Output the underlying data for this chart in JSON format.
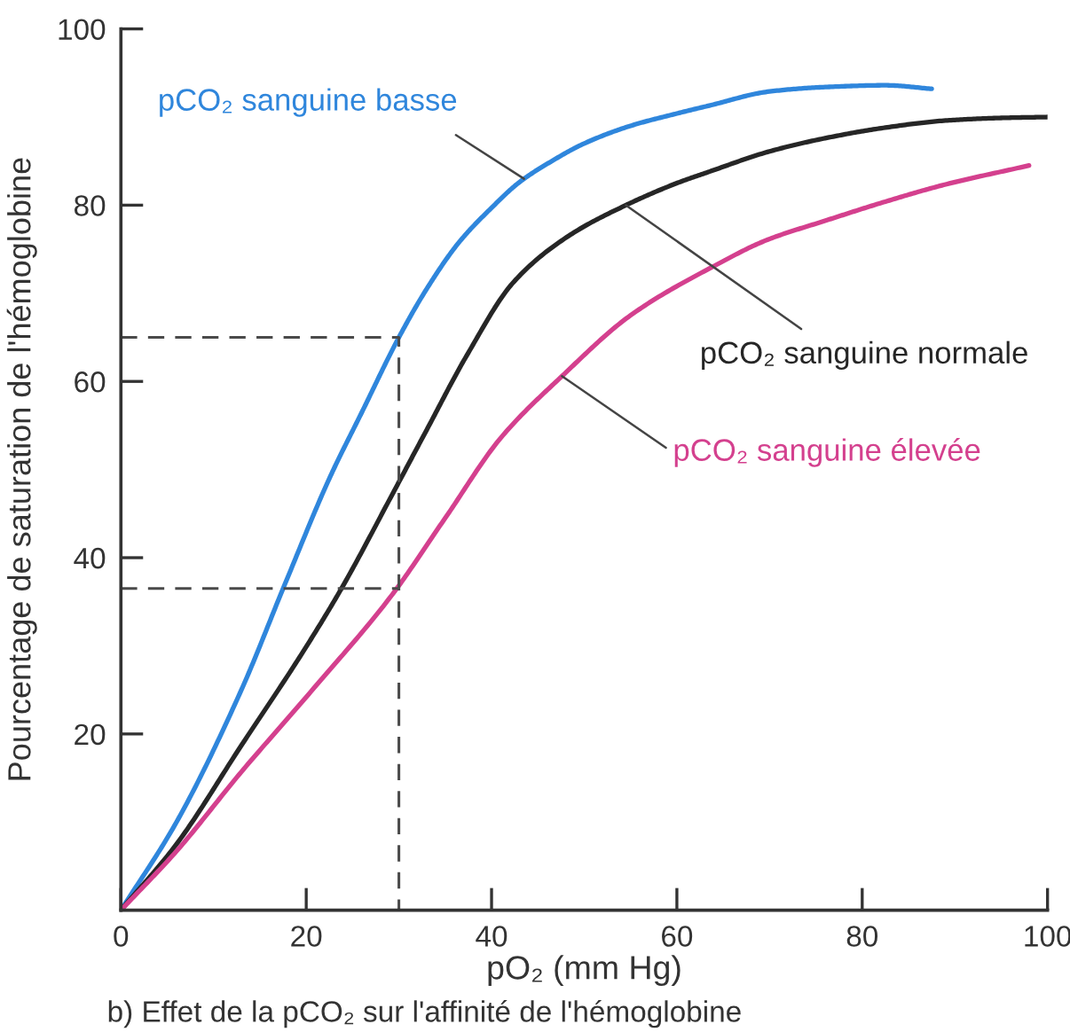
{
  "chart_data": {
    "type": "line",
    "xlabel": "pO₂ (mm Hg)",
    "ylabel": "Pourcentage de saturation de l'hémoglobine",
    "xlim": [
      0,
      100
    ],
    "ylim": [
      0,
      100
    ],
    "xticks": [
      0,
      20,
      40,
      60,
      80,
      100
    ],
    "yticks": [
      20,
      40,
      60,
      80,
      100
    ],
    "grid": false,
    "legend": false,
    "marker": "none",
    "line_style": "solid",
    "annotations": [
      "b) Effet de la pCO₂ sur l'affinité de l'hémoglobine"
    ],
    "series": [
      {
        "name": "pCO₂ sanguine basse",
        "color": "#2f86dc",
        "x": [
          0,
          6,
          13,
          17.7,
          22.5,
          26,
          30,
          33,
          36.5,
          40,
          43,
          46.5,
          50,
          55,
          60,
          63.5,
          70,
          76,
          82.5,
          87.5
        ],
        "values": [
          0,
          10,
          25,
          37,
          49,
          56.5,
          65,
          70.5,
          75.8,
          79.7,
          82.6,
          85,
          87,
          89,
          90.4,
          91.3,
          92.9,
          93.4,
          93.6,
          93.2
        ]
      },
      {
        "name": "pCO₂ sanguine normale",
        "color": "#262626",
        "x": [
          0,
          6,
          13,
          19.7,
          23.8,
          29.5,
          33,
          37.3,
          42.4,
          48.3,
          54.5,
          60,
          63.5,
          70,
          76,
          82.5,
          89,
          95,
          100
        ],
        "values": [
          0,
          7.5,
          18.7,
          29.4,
          36.5,
          47.6,
          54.5,
          62.9,
          71.3,
          76.5,
          80,
          82.5,
          83.8,
          86.1,
          87.6,
          88.8,
          89.6,
          89.9,
          90
        ]
      },
      {
        "name": "pCO₂ sanguine élevée",
        "color": "#d4408e",
        "x": [
          0,
          6,
          13,
          20.5,
          29.2,
          35,
          41,
          47.6,
          55,
          64.2,
          69.6,
          76.2,
          82.5,
          88.8,
          98
        ],
        "values": [
          0,
          6.7,
          15.7,
          24.8,
          35.7,
          44.5,
          53.6,
          60.6,
          67.5,
          73.2,
          76,
          78.3,
          80.4,
          82.3,
          84.5
        ]
      },
      {
        "color": "#4a4a4a",
        "line_style": "dashed",
        "x": [
          0,
          30,
          30
        ],
        "values": [
          65,
          65,
          0
        ]
      },
      {
        "color": "#4a4a4a",
        "line_style": "dashed",
        "x": [
          0,
          30
        ],
        "values": [
          36.5,
          36.5
        ]
      }
    ]
  }
}
